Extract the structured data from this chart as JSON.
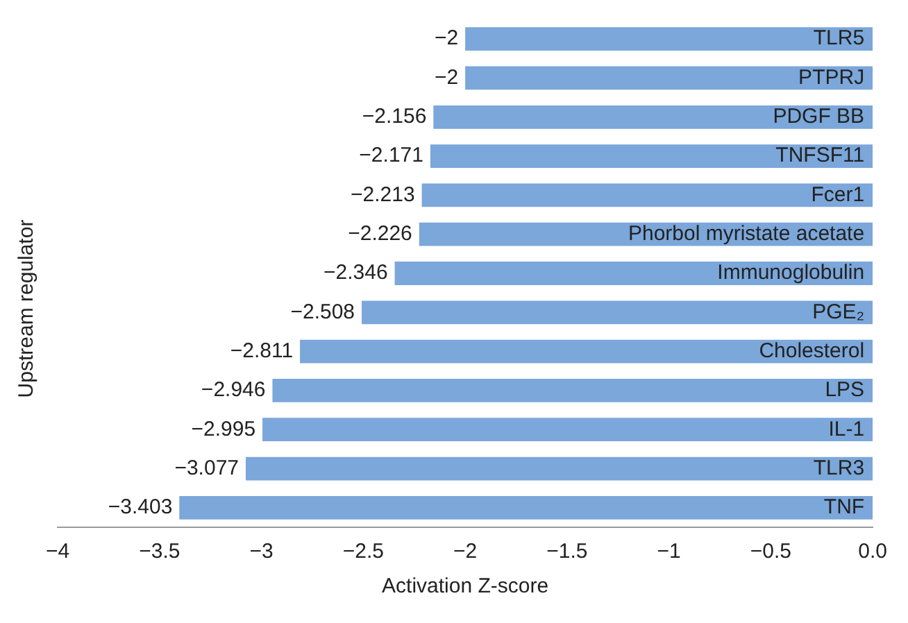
{
  "chart_data": {
    "type": "bar",
    "orientation": "horizontal",
    "xlabel": "Activation Z-score",
    "ylabel": "Upstream regulator",
    "categories": [
      "TLR5",
      "PTPRJ",
      "PDGF BB",
      "TNFSF11",
      "Fcer1",
      "Phorbol myristate acetate",
      "Immunoglobulin",
      "PGE₂",
      "Cholesterol",
      "LPS",
      "IL-1",
      "TLR3",
      "TNF"
    ],
    "values": [
      -2,
      -2,
      -2.156,
      -2.171,
      -2.213,
      -2.226,
      -2.346,
      -2.508,
      -2.811,
      -2.946,
      -2.995,
      -3.077,
      -3.403
    ],
    "value_labels": [
      "−2",
      "−2",
      "−2.156",
      "−2.171",
      "−2.213",
      "−2.226",
      "−2.346",
      "−2.508",
      "−2.811",
      "−2.946",
      "−2.995",
      "−3.077",
      "−3.403"
    ],
    "color": "#7ba7da",
    "xlim": [
      -4,
      0
    ],
    "xticks": [
      {
        "value": -4,
        "label": "−4"
      },
      {
        "value": -3.5,
        "label": "−3.5"
      },
      {
        "value": -3,
        "label": "−3"
      },
      {
        "value": -2.5,
        "label": "−2.5"
      },
      {
        "value": -2,
        "label": "−2"
      },
      {
        "value": -1.5,
        "label": "−1.5"
      },
      {
        "value": -1,
        "label": "−1"
      },
      {
        "value": -0.5,
        "label": "−0.5"
      },
      {
        "value": 0,
        "label": "0.0"
      }
    ],
    "grid": false,
    "legend": false
  }
}
